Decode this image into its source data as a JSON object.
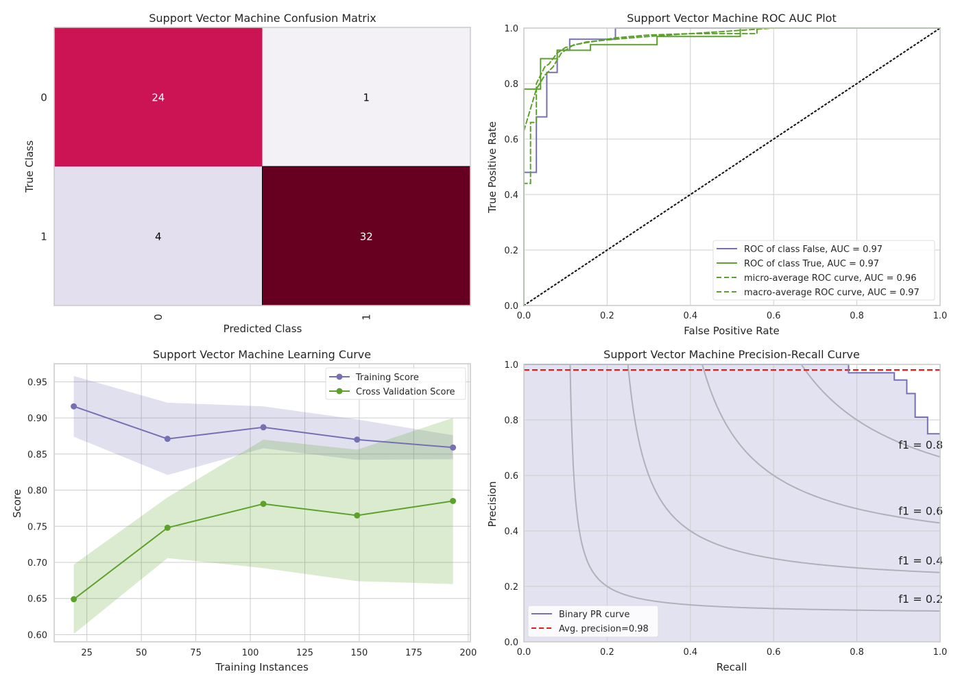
{
  "chart_data": [
    {
      "type": "heatmap",
      "title": "Support Vector Machine Confusion Matrix",
      "xlabel": "Predicted Class",
      "ylabel": "True Class",
      "x_ticks": [
        "0",
        "1"
      ],
      "y_ticks": [
        "0",
        "1"
      ],
      "matrix": [
        [
          24,
          1
        ],
        [
          4,
          32
        ]
      ],
      "colors": [
        [
          "#cc1455",
          "#f3f0f6"
        ],
        [
          "#e4dfee",
          "#670020"
        ]
      ],
      "text_colors": [
        [
          "#ffffff",
          "#000000"
        ],
        [
          "#000000",
          "#ffffff"
        ]
      ]
    },
    {
      "type": "line",
      "title": "Support Vector Machine ROC AUC Plot",
      "xlabel": "False Positive Rate",
      "ylabel": "True Positive Rate",
      "xlim": [
        0,
        1
      ],
      "ylim": [
        0,
        1
      ],
      "x_ticks": [
        "0.0",
        "0.2",
        "0.4",
        "0.6",
        "0.8",
        "1.0"
      ],
      "y_ticks": [
        "0.0",
        "0.2",
        "0.4",
        "0.6",
        "0.8",
        "1.0"
      ],
      "grid": true,
      "legend_position": "lower-right",
      "series": [
        {
          "name": "ROC of class False, AUC = 0.97",
          "color": "#7570b3",
          "style": "solid",
          "x": [
            0,
            0,
            0,
            0.03,
            0.03,
            0.055,
            0.055,
            0.08,
            0.08,
            0.11,
            0.11,
            0.22,
            0.22,
            1
          ],
          "y": [
            0,
            0.48,
            0.48,
            0.48,
            0.68,
            0.68,
            0.84,
            0.84,
            0.92,
            0.92,
            0.96,
            0.96,
            1,
            1
          ]
        },
        {
          "name": "ROC of class True, AUC = 0.97",
          "color": "#5ca22a",
          "style": "solid",
          "x": [
            0,
            0,
            0.04,
            0.04,
            0.08,
            0.08,
            0.16,
            0.16,
            0.32,
            0.32,
            0.52,
            0.52,
            1
          ],
          "y": [
            0,
            0.78,
            0.78,
            0.89,
            0.89,
            0.92,
            0.92,
            0.94,
            0.94,
            0.97,
            0.97,
            1,
            1
          ]
        },
        {
          "name": "micro-average ROC curve, AUC = 0.96",
          "color": "#5ca22a",
          "style": "dashed",
          "x": [
            0,
            0,
            0.016,
            0.016,
            0.03,
            0.03,
            0.05,
            0.06,
            0.08,
            0.1,
            0.15,
            0.22,
            0.3,
            0.4,
            0.55,
            0.56,
            0.56,
            1
          ],
          "y": [
            0,
            0.44,
            0.44,
            0.66,
            0.66,
            0.8,
            0.86,
            0.87,
            0.91,
            0.93,
            0.95,
            0.96,
            0.97,
            0.98,
            0.98,
            0.98,
            1,
            1
          ]
        },
        {
          "name": "macro-average ROC curve, AUC = 0.97",
          "color": "#5ca22a",
          "style": "dashed",
          "x": [
            0,
            0.01,
            0.03,
            0.05,
            0.07,
            0.09,
            0.12,
            0.16,
            0.22,
            0.3,
            0.4,
            0.5,
            0.55,
            0.6,
            1
          ],
          "y": [
            0.63,
            0.68,
            0.78,
            0.83,
            0.86,
            0.91,
            0.94,
            0.95,
            0.965,
            0.975,
            0.98,
            0.99,
            0.995,
            1,
            1
          ]
        },
        {
          "name": "",
          "color": "#1a1a1a",
          "style": "dotted",
          "x": [
            0,
            1
          ],
          "y": [
            0,
            1
          ]
        }
      ]
    },
    {
      "type": "line",
      "title": "Support Vector Machine Learning Curve",
      "xlabel": "Training Instances",
      "ylabel": "Score",
      "xlim": [
        10,
        201
      ],
      "ylim": [
        0.59,
        0.975
      ],
      "x_ticks": [
        "25",
        "50",
        "75",
        "100",
        "125",
        "150",
        "175",
        "200"
      ],
      "y_ticks": [
        "0.60",
        "0.65",
        "0.70",
        "0.75",
        "0.80",
        "0.85",
        "0.90",
        "0.95"
      ],
      "grid": true,
      "legend_position": "top-right",
      "series": [
        {
          "name": "Training Score",
          "color": "#7570b3",
          "x": [
            19,
            62,
            106,
            149,
            193
          ],
          "values": [
            0.916,
            0.871,
            0.887,
            0.87,
            0.859
          ],
          "band_upper": [
            0.958,
            0.921,
            0.916,
            0.898,
            0.876
          ],
          "band_lower": [
            0.874,
            0.821,
            0.858,
            0.842,
            0.843
          ]
        },
        {
          "name": "Cross Validation Score",
          "color": "#5ca22a",
          "x": [
            19,
            62,
            106,
            149,
            193
          ],
          "values": [
            0.649,
            0.748,
            0.781,
            0.765,
            0.785
          ],
          "band_upper": [
            0.697,
            0.79,
            0.87,
            0.856,
            0.9
          ],
          "band_lower": [
            0.601,
            0.706,
            0.692,
            0.674,
            0.67
          ]
        }
      ]
    },
    {
      "type": "line",
      "title": "Support Vector Machine Precision-Recall Curve",
      "xlabel": "Recall",
      "ylabel": "Precision",
      "xlim": [
        0,
        1
      ],
      "ylim": [
        0,
        1
      ],
      "x_ticks": [
        "0.0",
        "0.2",
        "0.4",
        "0.6",
        "0.8",
        "1.0"
      ],
      "y_ticks": [
        "0.0",
        "0.2",
        "0.4",
        "0.6",
        "0.8",
        "1.0"
      ],
      "grid": true,
      "legend_position": "lower-left",
      "iso_f1": [
        0.2,
        0.4,
        0.6,
        0.8
      ],
      "iso_labels": [
        "f1 = 0.2",
        "f1 = 0.4",
        "f1 = 0.6",
        "f1 = 0.8"
      ],
      "series": [
        {
          "name": "Binary PR curve",
          "color": "#7570b3",
          "recall": [
            0,
            0.78,
            0.78,
            0.8,
            0.8,
            0.89,
            0.89,
            0.92,
            0.92,
            0.94,
            0.94,
            0.97,
            0.97,
            1.0
          ],
          "precision": [
            1.0,
            1.0,
            0.97,
            0.97,
            0.97,
            0.97,
            0.944,
            0.944,
            0.895,
            0.895,
            0.81,
            0.81,
            0.75,
            0.75
          ]
        },
        {
          "name": "Avg. precision=0.98",
          "color": "#e41a1c",
          "style": "dashed",
          "value": 0.98
        }
      ]
    }
  ]
}
